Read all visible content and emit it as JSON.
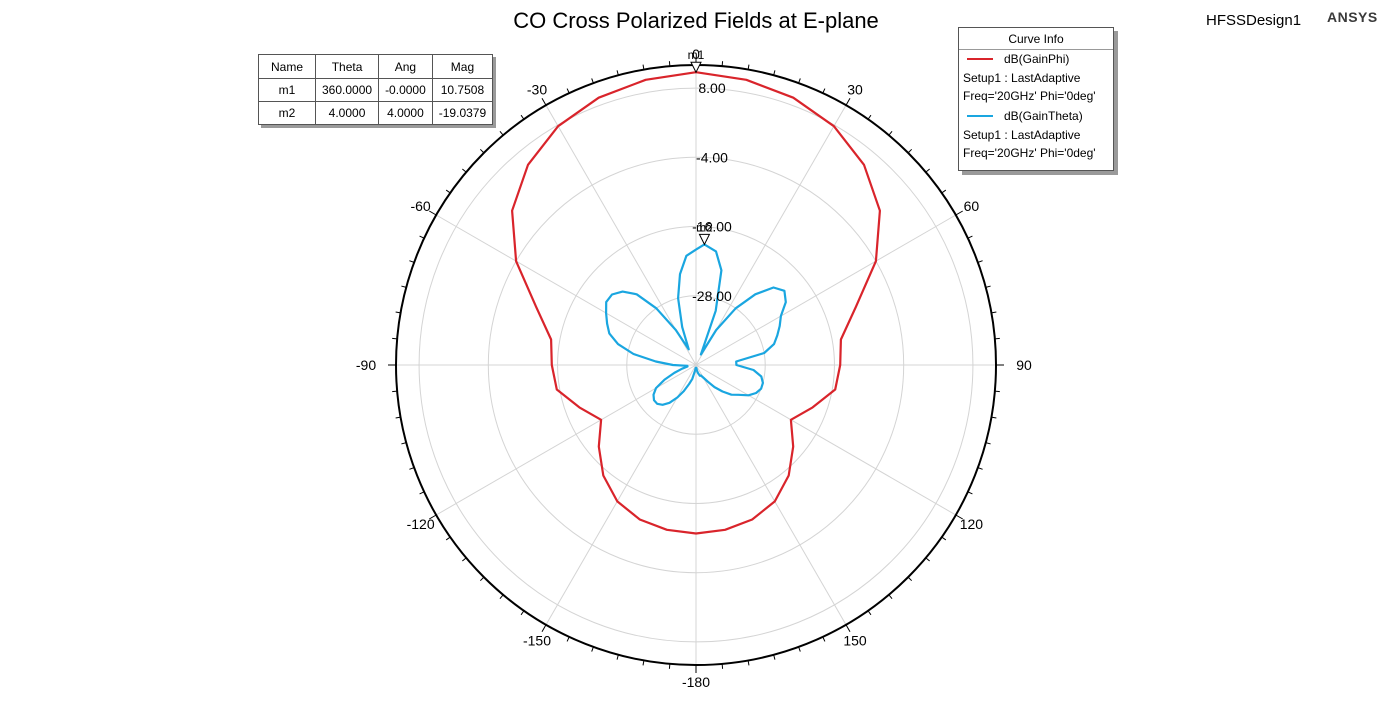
{
  "header": {
    "title": "CO Cross Polarized Fields at E-plane",
    "design_name": "HFSSDesign1",
    "vendor": "ANSYS"
  },
  "marker_table": {
    "columns": [
      "Name",
      "Theta",
      "Ang",
      "Mag"
    ],
    "rows": [
      [
        "m1",
        "360.0000",
        "-0.0000",
        "10.7508"
      ],
      [
        "m2",
        "4.0000",
        "4.0000",
        "-19.0379"
      ]
    ]
  },
  "legend": {
    "title": "Curve Info",
    "items": [
      {
        "name": "dB(GainPhi)",
        "setup": "Setup1 : LastAdaptive",
        "freq": "Freq='20GHz' Phi='0deg'",
        "color": "#d9242b"
      },
      {
        "name": "dB(GainTheta)",
        "setup": "Setup1 : LastAdaptive",
        "freq": "Freq='20GHz' Phi='0deg'",
        "color": "#1aa6e0"
      }
    ]
  },
  "chart_data": {
    "type": "polar",
    "r_range": [
      -40,
      12
    ],
    "r_ticks": [
      8,
      -4,
      -16,
      -28
    ],
    "r_tick_labels": [
      "8.00",
      "-4.00",
      "-16.00",
      "-28.00"
    ],
    "angle_tick_labels": [
      "0",
      "30",
      "60",
      "90",
      "120",
      "150",
      "-180",
      "-150",
      "-120",
      "-90",
      "-60",
      "-30"
    ],
    "grid": true,
    "legend_position": "top-right",
    "markers": [
      {
        "name": "m1",
        "theta": 0,
        "mag": 10.7508
      },
      {
        "name": "m2",
        "theta": 4,
        "mag": -19.0379
      }
    ],
    "series": [
      {
        "name": "dB(GainPhi)",
        "color": "#d9242b",
        "theta": [
          0,
          10,
          20,
          30,
          40,
          50,
          60,
          70,
          80,
          90,
          100,
          110,
          120,
          130,
          140,
          150,
          160,
          170,
          180,
          190,
          200,
          210,
          220,
          230,
          240,
          250,
          260,
          270,
          280,
          290,
          300,
          310,
          320,
          330,
          340,
          350
        ],
        "values": [
          10.75,
          10.2,
          9.3,
          7.8,
          5.3,
          1.6,
          -4,
          -10.5,
          -14.5,
          -15,
          -15.5,
          -18.5,
          -21,
          -18,
          -15,
          -12.7,
          -11.5,
          -11,
          -10.8,
          -11,
          -11.5,
          -12.7,
          -15,
          -18,
          -21,
          -18.5,
          -15.5,
          -15,
          -14.5,
          -10.5,
          -4,
          1.6,
          5.3,
          7.8,
          9.3,
          10.2
        ]
      },
      {
        "name": "dB(GainTheta)",
        "color": "#1aa6e0",
        "theta": [
          0,
          4,
          10,
          15,
          20,
          25,
          30,
          35,
          40,
          45,
          50,
          55,
          60,
          65,
          70,
          75,
          80,
          85,
          90,
          95,
          100,
          105,
          110,
          115,
          120,
          125,
          130,
          135,
          140,
          145,
          150,
          155,
          160,
          165,
          170,
          175,
          180,
          185,
          190,
          195,
          200,
          205,
          210,
          215,
          220,
          225,
          230,
          235,
          240,
          245,
          250,
          255,
          260,
          265,
          270,
          275,
          280,
          285,
          290,
          295,
          300,
          305,
          310,
          315,
          320,
          325,
          330,
          335,
          340,
          345,
          350,
          355
        ],
        "values": [
          -20,
          -19.04,
          -20,
          -23,
          -30,
          -38,
          -33,
          -28,
          -24,
          -21,
          -20,
          -21,
          -23,
          -24,
          -25,
          -26,
          -28,
          -33,
          -33,
          -30,
          -28.5,
          -28,
          -28,
          -28.5,
          -29.5,
          -31,
          -32,
          -33.5,
          -35,
          -36.5,
          -37.5,
          -38,
          -38,
          -38.5,
          -39,
          -39.5,
          -39.5,
          -39.5,
          -39,
          -37.5,
          -36.5,
          -35,
          -33.5,
          -32,
          -31,
          -30.5,
          -30.5,
          -31,
          -32,
          -34,
          -36,
          -37.5,
          -38.5,
          -38.5,
          -36,
          -33,
          -29,
          -26,
          -24,
          -23,
          -22,
          -21,
          -21,
          -22,
          -24,
          -28,
          -33,
          -37,
          -33,
          -28,
          -24,
          -21
        ]
      }
    ]
  }
}
